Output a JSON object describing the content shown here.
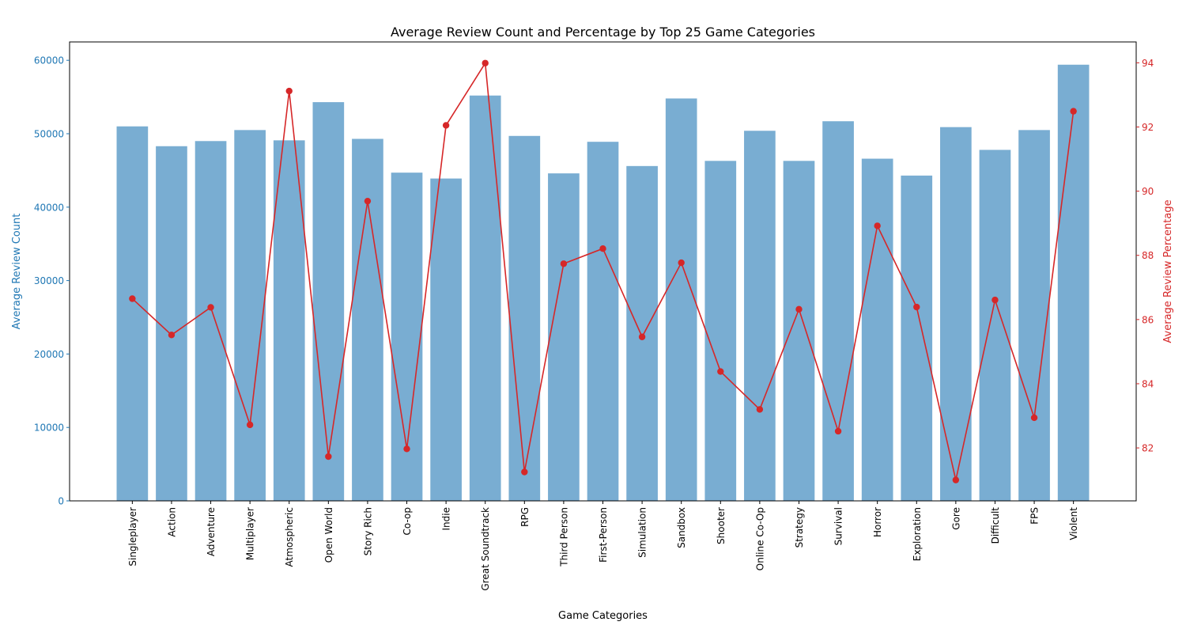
{
  "chart_data": {
    "type": "bar",
    "title": "Average Review Count and Percentage by Top 25 Game Categories",
    "xlabel": "Game Categories",
    "ylabel_left": "Average Review Count",
    "ylabel_right": "Average Review Percentage",
    "categories": [
      "Singleplayer",
      "Action",
      "Adventure",
      "Multiplayer",
      "Atmospheric",
      "Open World",
      "Story Rich",
      "Co-op",
      "Indie",
      "Great Soundtrack",
      "RPG",
      "Third Person",
      "First-Person",
      "Simulation",
      "Sandbox",
      "Shooter",
      "Online Co-Op",
      "Strategy",
      "Survival",
      "Horror",
      "Exploration",
      "Gore",
      "Difficult",
      "FPS",
      "Violent"
    ],
    "series": [
      {
        "type": "bar",
        "axis": "left",
        "color": "#1f77b4",
        "opacity": 0.6,
        "values": [
          51000,
          48300,
          49000,
          50500,
          49100,
          54300,
          49300,
          44700,
          43900,
          55200,
          49700,
          44600,
          48900,
          45600,
          54800,
          46300,
          50400,
          46300,
          51700,
          46600,
          44300,
          50900,
          47800,
          50500,
          59400
        ]
      },
      {
        "type": "line",
        "axis": "right",
        "color": "#d62728",
        "values": [
          86.65,
          85.52,
          86.38,
          82.72,
          93.12,
          81.73,
          89.69,
          81.97,
          92.05,
          93.99,
          81.25,
          87.74,
          88.21,
          85.46,
          87.77,
          84.38,
          83.2,
          86.32,
          82.52,
          88.92,
          86.39,
          81.0,
          86.61,
          82.94,
          92.49
        ]
      }
    ],
    "ylim_left": [
      0,
      62500
    ],
    "yticks_left": [
      "0",
      "10000",
      "20000",
      "30000",
      "40000",
      "50000",
      "60000"
    ],
    "ylim_right": [
      80.35,
      94.65
    ],
    "yticks_right": [
      "82",
      "84",
      "86",
      "88",
      "90",
      "92",
      "94"
    ],
    "left_axis_color": "#1f77b4",
    "right_axis_color": "#d62728",
    "grid": false,
    "legend": "none"
  }
}
